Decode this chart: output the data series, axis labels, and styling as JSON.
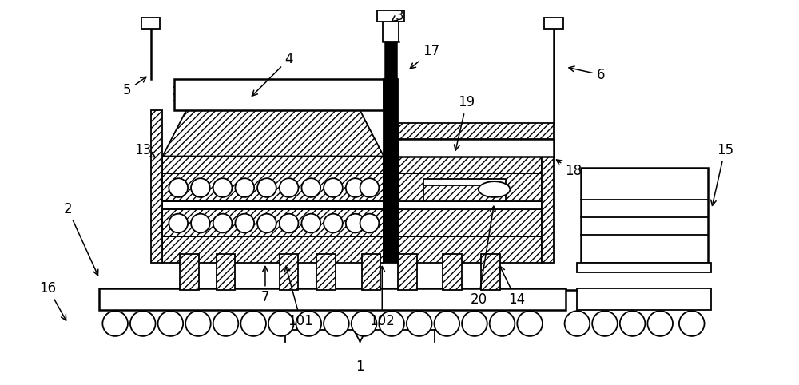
{
  "bg_color": "#ffffff",
  "line_color": "#000000",
  "fig_width": 10.0,
  "fig_height": 4.82
}
